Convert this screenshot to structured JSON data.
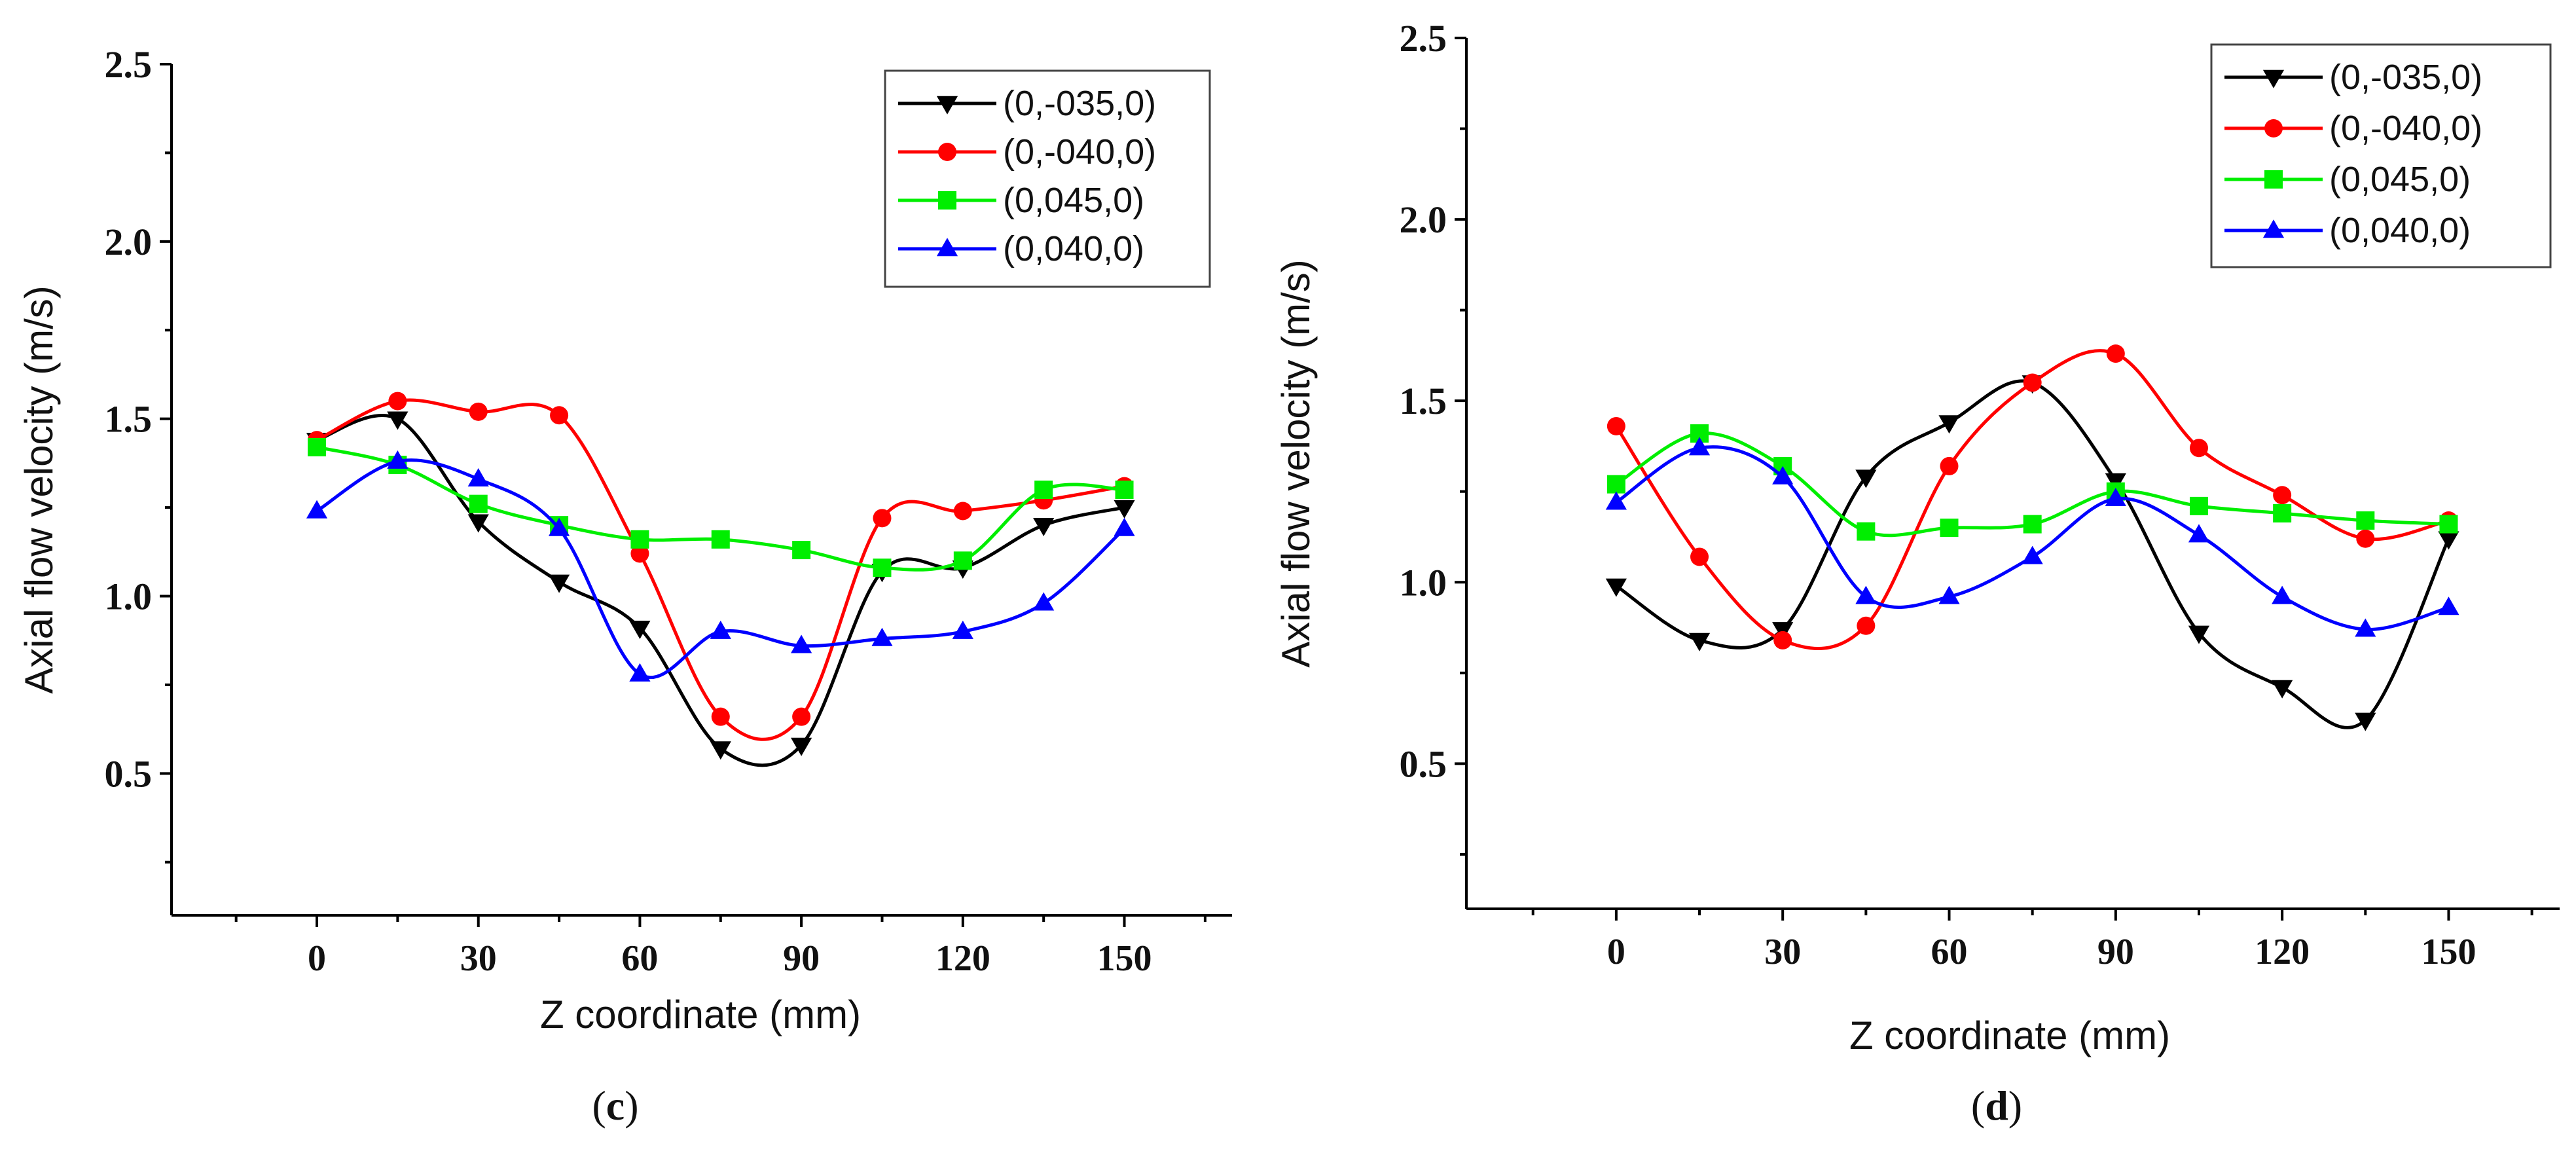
{
  "chart_data": [
    {
      "type": "line",
      "panel": "c",
      "panel_caption": [
        "(",
        "c",
        ")"
      ],
      "xlabel": "Z coordinate (mm)",
      "ylabel": "Axial flow velocity  (m/s)",
      "x": [
        0,
        15,
        30,
        45,
        60,
        75,
        90,
        105,
        120,
        135,
        150
      ],
      "xticks": [
        0,
        30,
        60,
        90,
        120,
        150
      ],
      "xtick_labels": [
        "0",
        "30",
        "60",
        "90",
        "120",
        "150"
      ],
      "yticks": [
        0.5,
        1.0,
        1.5,
        2.0,
        2.5
      ],
      "ytick_labels": [
        "0.5",
        "1.0",
        "1.5",
        "2.0",
        "2.5"
      ],
      "xlim": [
        -27,
        170
      ],
      "ylim": [
        0.1,
        2.5
      ],
      "legend_position": "top-right",
      "series": [
        {
          "name": "(0,-035,0)",
          "color": "#000000",
          "marker": "triangle-down",
          "values": [
            1.44,
            1.5,
            1.21,
            1.04,
            0.91,
            0.57,
            0.58,
            1.07,
            1.08,
            1.2,
            1.25
          ]
        },
        {
          "name": "(0,-040,0)",
          "color": "#ff0000",
          "marker": "circle",
          "values": [
            1.44,
            1.55,
            1.52,
            1.51,
            1.12,
            0.66,
            0.66,
            1.22,
            1.24,
            1.27,
            1.31
          ]
        },
        {
          "name": "(0,045,0)",
          "color": "#00ee00",
          "marker": "square",
          "values": [
            1.42,
            1.37,
            1.26,
            1.2,
            1.16,
            1.16,
            1.13,
            1.08,
            1.1,
            1.3,
            1.3
          ]
        },
        {
          "name": "(0,040,0)",
          "color": "#0000ff",
          "marker": "triangle-up",
          "values": [
            1.24,
            1.38,
            1.33,
            1.19,
            0.78,
            0.9,
            0.86,
            0.88,
            0.9,
            0.98,
            1.19
          ]
        }
      ]
    },
    {
      "type": "line",
      "panel": "d",
      "panel_caption": [
        "(",
        "d",
        ")"
      ],
      "xlabel": "Z coordinate (mm)",
      "ylabel": "Axial flow velocity  (m/s)",
      "x": [
        0,
        15,
        30,
        45,
        60,
        75,
        90,
        105,
        120,
        135,
        150
      ],
      "xticks": [
        0,
        30,
        60,
        90,
        120,
        150
      ],
      "xtick_labels": [
        "0",
        "30",
        "60",
        "90",
        "120",
        "150"
      ],
      "yticks": [
        0.5,
        1.0,
        1.5,
        2.0,
        2.5
      ],
      "ytick_labels": [
        "0.5",
        "1.0",
        "1.5",
        "2.0",
        "2.5"
      ],
      "xlim": [
        -27,
        170
      ],
      "ylim": [
        0.1,
        2.5
      ],
      "legend_position": "top-right",
      "series": [
        {
          "name": "(0,-035,0)",
          "color": "#000000",
          "marker": "triangle-down",
          "values": [
            0.99,
            0.84,
            0.87,
            1.29,
            1.44,
            1.55,
            1.28,
            0.86,
            0.71,
            0.62,
            1.12
          ]
        },
        {
          "name": "(0,-040,0)",
          "color": "#ff0000",
          "marker": "circle",
          "values": [
            1.43,
            1.07,
            0.84,
            0.88,
            1.32,
            1.55,
            1.63,
            1.37,
            1.24,
            1.12,
            1.17
          ]
        },
        {
          "name": "(0,045,0)",
          "color": "#00ee00",
          "marker": "square",
          "values": [
            1.27,
            1.41,
            1.32,
            1.14,
            1.15,
            1.16,
            1.25,
            1.21,
            1.19,
            1.17,
            1.16
          ]
        },
        {
          "name": "(0,040,0)",
          "color": "#0000ff",
          "marker": "triangle-up",
          "values": [
            1.22,
            1.37,
            1.29,
            0.96,
            0.96,
            1.07,
            1.23,
            1.13,
            0.96,
            0.87,
            0.93
          ]
        }
      ]
    }
  ]
}
